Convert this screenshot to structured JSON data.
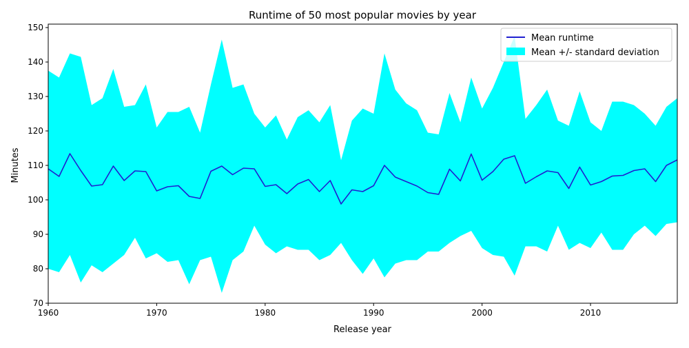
{
  "chart_data": {
    "type": "line",
    "title": "Runtime of 50 most popular movies by year",
    "xlabel": "Release year",
    "ylabel": "Minutes",
    "xlim": [
      1960,
      2018
    ],
    "ylim": [
      70,
      151
    ],
    "xticks": [
      1960,
      1970,
      1980,
      1990,
      2000,
      2010
    ],
    "yticks": [
      70,
      80,
      90,
      100,
      110,
      120,
      130,
      140,
      150
    ],
    "grid": false,
    "legend_position": "top-right",
    "x": [
      1960,
      1961,
      1962,
      1963,
      1964,
      1965,
      1966,
      1967,
      1968,
      1969,
      1970,
      1971,
      1972,
      1973,
      1974,
      1975,
      1976,
      1977,
      1978,
      1979,
      1980,
      1981,
      1982,
      1983,
      1984,
      1985,
      1986,
      1987,
      1988,
      1989,
      1990,
      1991,
      1992,
      1993,
      1994,
      1995,
      1996,
      1997,
      1998,
      1999,
      2000,
      2001,
      2002,
      2003,
      2004,
      2005,
      2006,
      2007,
      2008,
      2009,
      2010,
      2011,
      2012,
      2013,
      2014,
      2015,
      2016,
      2017,
      2018
    ],
    "series": [
      {
        "name": "Mean runtime",
        "kind": "line",
        "color": "#1f1fd0",
        "values": [
          109,
          106.8,
          113.4,
          108.5,
          104,
          104.4,
          109.8,
          105.6,
          108.4,
          108.2,
          102.6,
          103.8,
          104.1,
          101,
          100.4,
          108.3,
          109.8,
          107.3,
          109.2,
          109,
          103.9,
          104.4,
          101.8,
          104.6,
          105.9,
          102.4,
          105.6,
          98.8,
          102.9,
          102.4,
          104.1,
          110,
          106.6,
          105.3,
          104,
          102.1,
          101.6,
          108.9,
          105.5,
          113.3,
          105.7,
          108.2,
          111.8,
          112.8,
          104.8,
          106.7,
          108.4,
          107.9,
          103.3,
          109.5,
          104.3,
          105.3,
          106.9,
          107.1,
          108.5,
          109,
          105.3,
          110,
          111.6
        ]
      },
      {
        "name": "Mean +/- standard deviation",
        "kind": "band",
        "color": "#00ffff",
        "upper": [
          137.5,
          135.5,
          142.5,
          141.5,
          127.5,
          129.5,
          138,
          127,
          127.5,
          133.5,
          121,
          125.5,
          125.5,
          127,
          119.5,
          133.5,
          146.5,
          132.5,
          133.5,
          125,
          121,
          124.5,
          117.5,
          124,
          126,
          122.5,
          127.5,
          111.5,
          123,
          126.5,
          125,
          142.5,
          132,
          128,
          126,
          119.5,
          119,
          131,
          122.5,
          135.5,
          126.5,
          132.5,
          140,
          147.5,
          123.5,
          127.5,
          132,
          123,
          121.5,
          131.5,
          122.5,
          120,
          128.5,
          128.5,
          127.5,
          125,
          121.5,
          127,
          129.5
        ],
        "lower": [
          80,
          79,
          84,
          76,
          81,
          79,
          81.5,
          84,
          89,
          83,
          84.5,
          82,
          82.5,
          75.5,
          82.5,
          83.5,
          73,
          82.5,
          85,
          92.5,
          87,
          84.5,
          86.5,
          85.5,
          85.5,
          82.5,
          84,
          87.5,
          82.5,
          78.5,
          83,
          77.5,
          81.5,
          82.5,
          82.5,
          85,
          85,
          87.5,
          89.5,
          91,
          86,
          84,
          83.5,
          78,
          86.5,
          86.5,
          85,
          92.5,
          85.5,
          87.5,
          86,
          90.5,
          85.5,
          85.5,
          90,
          92.5,
          89.5,
          93,
          93.5
        ]
      }
    ]
  }
}
